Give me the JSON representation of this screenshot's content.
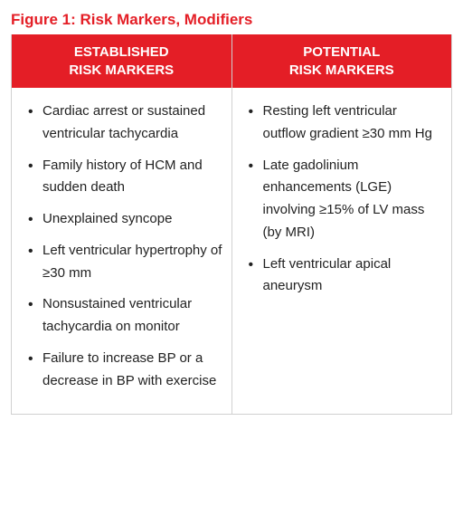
{
  "figure_title": "Figure 1: Risk Markers, Modifiers",
  "colors": {
    "header_bg": "#e41e26",
    "header_text": "#ffffff",
    "title_text": "#e41e26",
    "body_text": "#222222",
    "border": "#d0d0d0",
    "background": "#ffffff"
  },
  "typography": {
    "title_fontsize": 17,
    "header_fontsize": 15,
    "body_fontsize": 15,
    "line_height": 1.65,
    "font_family": "Arial"
  },
  "table": {
    "columns": [
      {
        "header": "ESTABLISHED\nRISK MARKERS",
        "items": [
          "Cardiac arrest or sustained ventricular tachycardia",
          "Family history of HCM and sudden death",
          "Unexplained syncope",
          "Left ventricular hypertrophy of ≥30 mm",
          "Nonsustained ventricular tachycardia on monitor",
          "Failure to increase BP or a decrease in BP with exercise"
        ]
      },
      {
        "header": "POTENTIAL\nRISK MARKERS",
        "items": [
          "Resting left ventricular outflow gradient ≥30 mm Hg",
          "Late gadolinium enhancements (LGE) involving ≥15% of LV mass (by MRI)",
          "Left ventricular apical aneurysm"
        ]
      }
    ]
  }
}
